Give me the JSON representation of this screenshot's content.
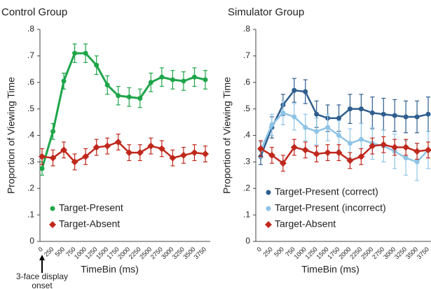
{
  "chart_data": [
    {
      "type": "line",
      "title": "Control Group",
      "y_label": "Proportion of Viewing Time",
      "x_label": "TimeBin (ms)",
      "annotation": "3-face display onset",
      "x": [
        0,
        250,
        500,
        750,
        1000,
        1250,
        1500,
        1750,
        2000,
        2250,
        2500,
        2750,
        3000,
        3250,
        3500,
        3750
      ],
      "xlim": [
        0,
        3750
      ],
      "ylim": [
        0,
        0.8
      ],
      "yticks": [
        0,
        {
          "value": 0.1,
          "label": ".1"
        },
        {
          "value": 0.2,
          "label": ".2"
        },
        {
          "value": 0.3,
          "label": ".3"
        },
        {
          "value": 0.4,
          "label": ".4"
        },
        {
          "value": 0.5,
          "label": ".5"
        },
        {
          "value": 0.6,
          "label": ".6"
        },
        {
          "value": 0.7,
          "label": ".7"
        },
        {
          "value": 0.8,
          "label": ".8"
        }
      ],
      "legend": "lower left",
      "series": [
        {
          "name": "Target-Present",
          "color": "#1fa54a",
          "marker": "circle",
          "values": [
            0.275,
            0.415,
            0.605,
            0.71,
            0.71,
            0.665,
            0.59,
            0.55,
            0.545,
            0.54,
            0.6,
            0.62,
            0.61,
            0.605,
            0.62,
            0.61
          ],
          "errors": [
            0.025,
            0.03,
            0.03,
            0.035,
            0.035,
            0.035,
            0.035,
            0.035,
            0.035,
            0.035,
            0.035,
            0.035,
            0.035,
            0.035,
            0.035,
            0.035
          ]
        },
        {
          "name": "Target-Absent",
          "color": "#c0281c",
          "marker": "diamond",
          "values": [
            0.32,
            0.315,
            0.345,
            0.3,
            0.32,
            0.355,
            0.36,
            0.375,
            0.335,
            0.335,
            0.36,
            0.35,
            0.315,
            0.325,
            0.335,
            0.33
          ],
          "errors": [
            0.03,
            0.03,
            0.03,
            0.03,
            0.03,
            0.03,
            0.03,
            0.03,
            0.03,
            0.03,
            0.03,
            0.03,
            0.03,
            0.03,
            0.03,
            0.03
          ]
        }
      ]
    },
    {
      "type": "line",
      "title": "Simulator Group",
      "y_label": "Proportion of Viewing Time",
      "x_label": "TimeBin (ms)",
      "x": [
        0,
        250,
        500,
        750,
        1000,
        1250,
        1500,
        1750,
        2000,
        2250,
        2500,
        2750,
        3000,
        3250,
        3500,
        3750
      ],
      "xlim": [
        0,
        3750
      ],
      "ylim": [
        0,
        0.8
      ],
      "yticks": [
        0,
        {
          "value": 0.1,
          "label": ".1"
        },
        {
          "value": 0.2,
          "label": ".2"
        },
        {
          "value": 0.3,
          "label": ".3"
        },
        {
          "value": 0.4,
          "label": ".4"
        },
        {
          "value": 0.5,
          "label": ".5"
        },
        {
          "value": 0.6,
          "label": ".6"
        },
        {
          "value": 0.7,
          "label": ".7"
        },
        {
          "value": 0.8,
          "label": ".8"
        }
      ],
      "legend": "lower left",
      "series": [
        {
          "name": "Target-Present (correct)",
          "color": "#2e5e8e",
          "marker": "circle",
          "values": [
            0.32,
            0.43,
            0.515,
            0.57,
            0.565,
            0.48,
            0.465,
            0.465,
            0.5,
            0.5,
            0.485,
            0.48,
            0.475,
            0.47,
            0.47,
            0.48
          ],
          "errors": [
            0.03,
            0.04,
            0.04,
            0.045,
            0.045,
            0.05,
            0.05,
            0.05,
            0.055,
            0.055,
            0.06,
            0.06,
            0.06,
            0.06,
            0.06,
            0.065
          ]
        },
        {
          "name": "Target-Present (incorrect)",
          "color": "#8ec4e6",
          "marker": "circle",
          "values": [
            0.345,
            0.44,
            0.485,
            0.47,
            0.43,
            0.415,
            0.43,
            0.4,
            0.37,
            0.385,
            0.37,
            0.36,
            0.34,
            0.315,
            0.3,
            0.345
          ],
          "errors": [
            0.03,
            0.04,
            0.045,
            0.05,
            0.05,
            0.05,
            0.05,
            0.055,
            0.055,
            0.06,
            0.06,
            0.06,
            0.065,
            0.065,
            0.07,
            0.07
          ]
        },
        {
          "name": "Target-Absent",
          "color": "#c0281c",
          "marker": "diamond",
          "values": [
            0.35,
            0.325,
            0.295,
            0.355,
            0.345,
            0.33,
            0.335,
            0.335,
            0.305,
            0.32,
            0.36,
            0.365,
            0.355,
            0.355,
            0.34,
            0.345
          ],
          "errors": [
            0.03,
            0.03,
            0.03,
            0.03,
            0.03,
            0.03,
            0.03,
            0.03,
            0.03,
            0.03,
            0.03,
            0.03,
            0.03,
            0.03,
            0.03,
            0.03
          ]
        }
      ]
    }
  ]
}
